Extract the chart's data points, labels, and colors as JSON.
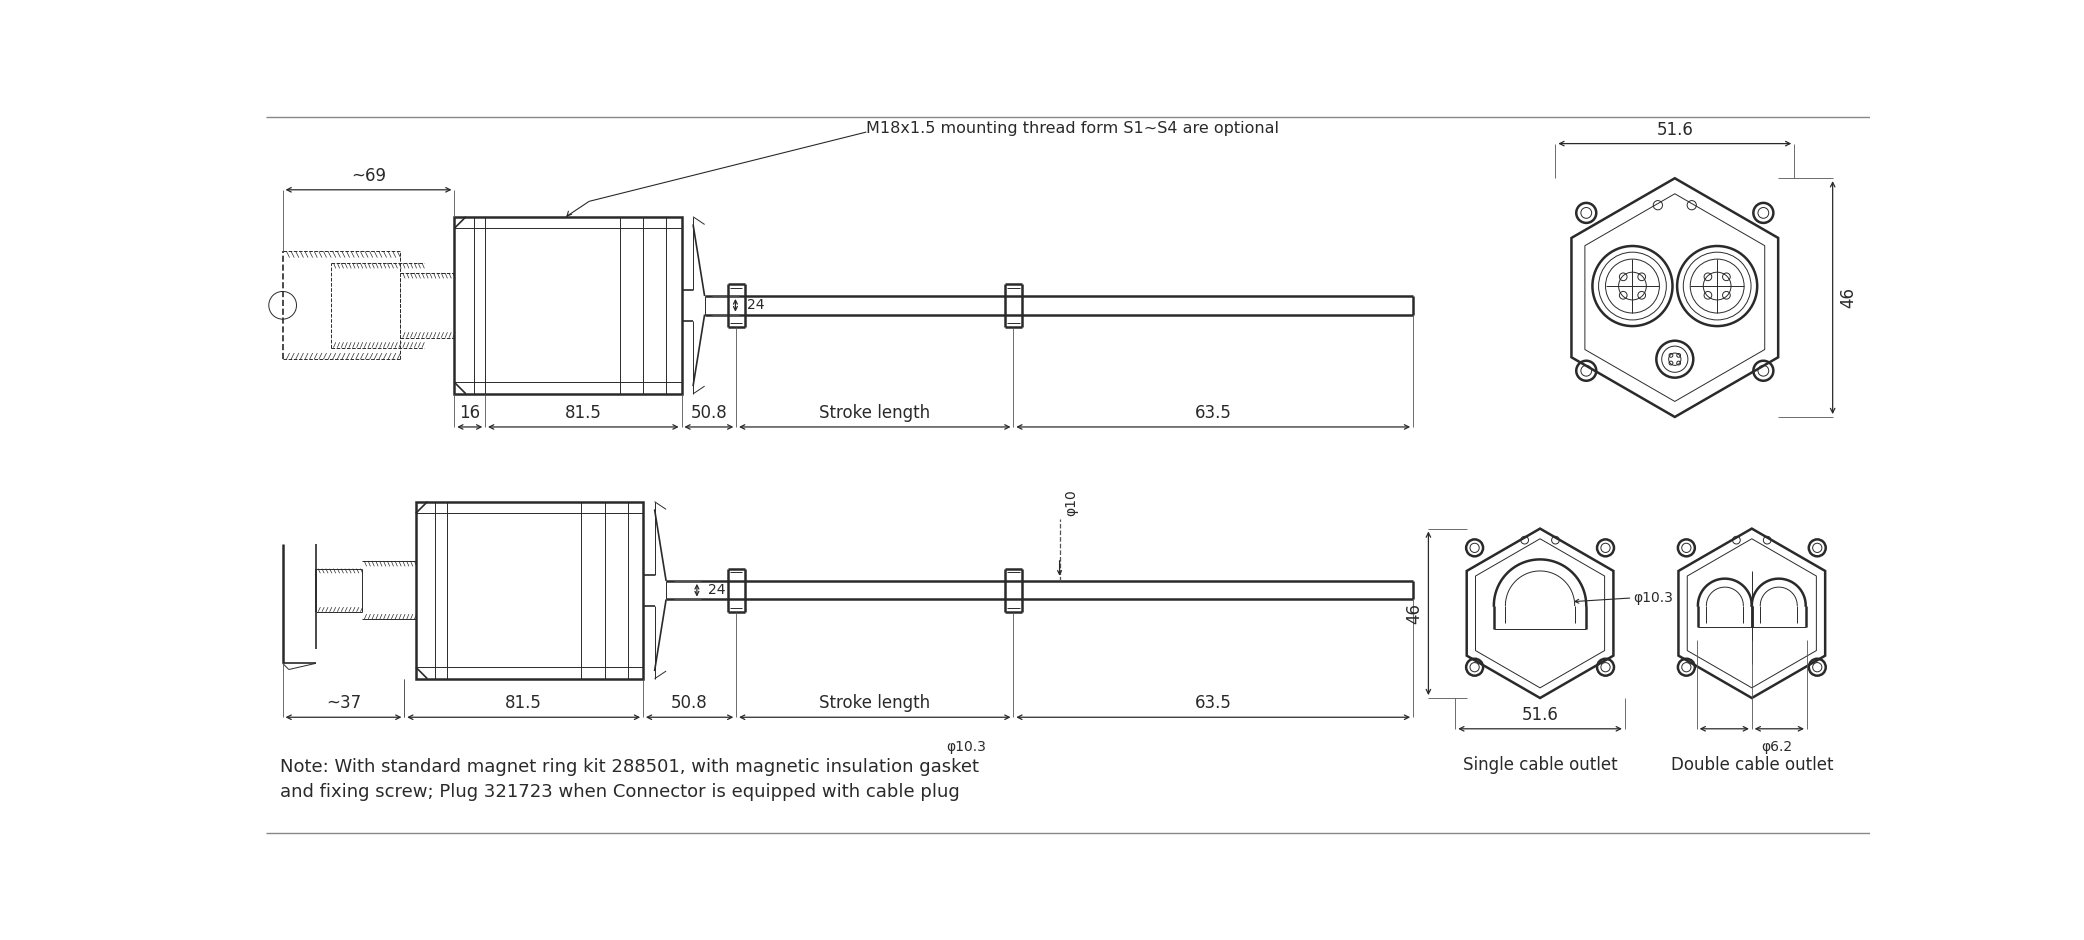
{
  "bg_color": "#ffffff",
  "line_color": "#2a2a2a",
  "title_annotation": "M18x1.5 mounting thread form S1~S4 are optional",
  "note_line1": "Note: With standard magnet ring kit 288501, with magnetic insulation gasket",
  "note_line2": "and fixing screw; Plug 321723 when Connector is equipped with cable plug",
  "dim_69": "~69",
  "dim_16": "16",
  "dim_81_5": "81.5",
  "dim_50_8": "50.8",
  "dim_stroke": "Stroke length",
  "dim_63_5": "63.5",
  "dim_24": "24",
  "dim_37": "~37",
  "dim_phi10": "φ10",
  "dim_51_6": "51.6",
  "dim_46": "46",
  "dim_phi10_3": "φ10.3",
  "dim_phi6_2": "φ6.2",
  "label_single": "Single cable outlet",
  "label_double": "Double cable outlet"
}
